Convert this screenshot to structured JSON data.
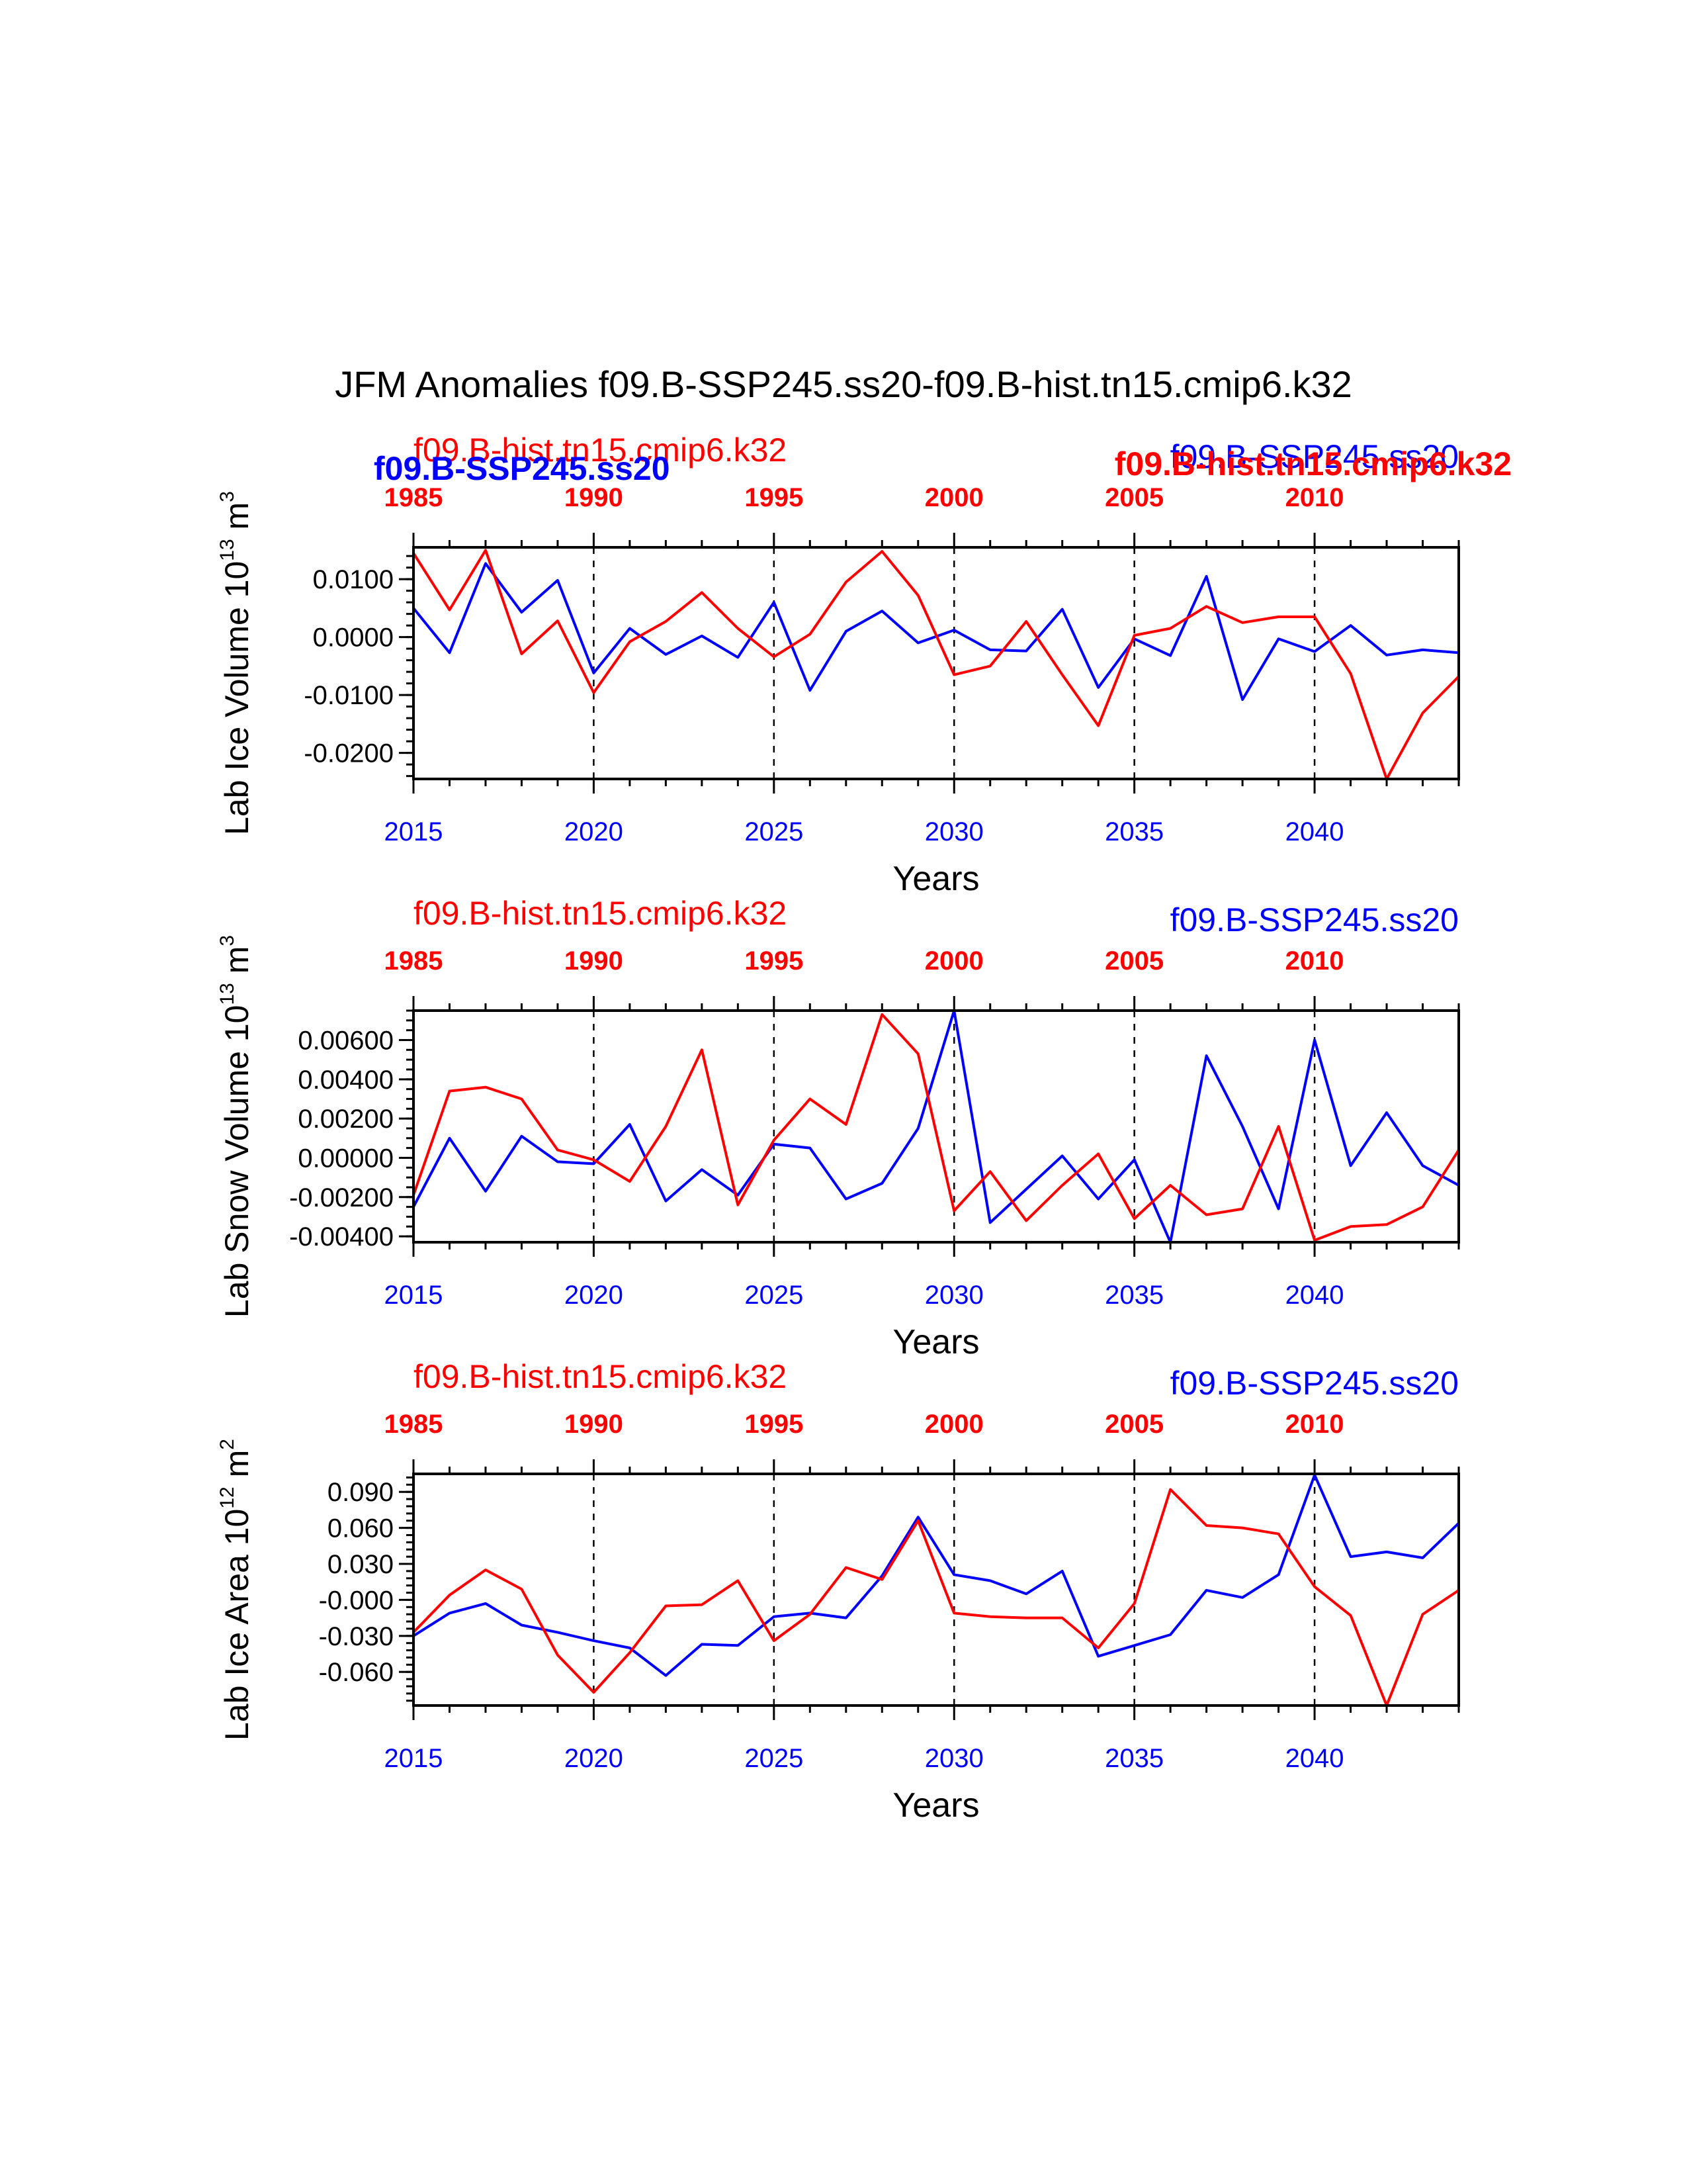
{
  "title": "JFM Anomalies f09.B-SSP245.ss20-f09.B-hist.tn15.cmip6.k32",
  "colors": {
    "ssp": "#0000ff",
    "hist": "#ff0000",
    "axis": "#000000"
  },
  "top_tick_labels": [
    "1985",
    "1990",
    "1995",
    "2000",
    "2005",
    "2010"
  ],
  "panel1_overlap_labels": {
    "ssp_left_bold": "f09.B-SSP245.ss20",
    "hist_right_bold": "f09.B-hist.tn15.cmip6.k32"
  },
  "chart_data": [
    {
      "type": "line",
      "ylabel": "Lab Ice Volume 10",
      "yunit_exp": "13",
      "yunit": "m",
      "yunit_pow": "3",
      "xlabel": "Years",
      "legend_left": "f09.B-hist.tn15.cmip6.k32",
      "legend_right": "f09.B-SSP245.ss20",
      "xlim": [
        2015,
        2044
      ],
      "ylim": [
        -0.0245,
        0.0155
      ],
      "ytick_values": [
        0.01,
        0.0,
        -0.01,
        -0.02
      ],
      "ytick_labels": [
        "0.0100",
        "0.0000",
        "-0.0100",
        "-0.0200"
      ],
      "yminor_step": 0.002,
      "xticks_bottom": [
        2015,
        2020,
        2025,
        2030,
        2035,
        2040
      ],
      "xtick_labels_bottom": [
        "2015",
        "2020",
        "2025",
        "2030",
        "2035",
        "2040"
      ],
      "series": [
        {
          "name": "f09.B-SSP245.ss20",
          "color": "#0000ff",
          "x": [
            2015,
            2016,
            2017,
            2018,
            2019,
            2020,
            2021,
            2022,
            2023,
            2024,
            2025,
            2026,
            2027,
            2028,
            2029,
            2030,
            2031,
            2032,
            2033,
            2034,
            2035,
            2036,
            2037,
            2038,
            2039,
            2040,
            2041,
            2042,
            2043,
            2044
          ],
          "values": [
            0.005,
            -0.0027,
            0.0127,
            0.0043,
            0.0098,
            -0.0062,
            0.0015,
            -0.003,
            0.0002,
            -0.0035,
            0.006,
            -0.0092,
            0.001,
            0.0045,
            -0.001,
            0.0012,
            -0.0022,
            -0.0024,
            0.0048,
            -0.0087,
            -0.0003,
            -0.0032,
            0.0105,
            -0.0108,
            -0.0003,
            -0.0025,
            0.002,
            -0.0031,
            -0.0022,
            -0.0027
          ]
        },
        {
          "name": "f09.B-hist.tn15.cmip6.k32",
          "color": "#ff0000",
          "x": [
            2015,
            2016,
            2017,
            2018,
            2019,
            2020,
            2021,
            2022,
            2023,
            2024,
            2025,
            2026,
            2027,
            2028,
            2029,
            2030,
            2031,
            2032,
            2033,
            2034,
            2035,
            2036,
            2037,
            2038,
            2039,
            2040,
            2041,
            2042,
            2043,
            2044
          ],
          "values": [
            0.0145,
            0.0047,
            0.015,
            -0.0029,
            0.0028,
            -0.0096,
            -0.0008,
            0.0027,
            0.0077,
            0.0015,
            -0.0034,
            0.0005,
            0.0095,
            0.0148,
            0.0072,
            -0.0065,
            -0.005,
            0.0027,
            -0.0065,
            -0.0153,
            0.0003,
            0.0015,
            0.0053,
            0.0025,
            0.0035,
            0.0035,
            -0.0063,
            -0.0245,
            -0.0131,
            -0.0068
          ]
        }
      ]
    },
    {
      "type": "line",
      "ylabel": "Lab Snow Volume 10",
      "yunit_exp": "13",
      "yunit": "m",
      "yunit_pow": "3",
      "xlabel": "Years",
      "legend_left": "f09.B-hist.tn15.cmip6.k32",
      "legend_right": "f09.B-SSP245.ss20",
      "xlim": [
        2015,
        2044
      ],
      "ylim": [
        -0.0043,
        0.0075
      ],
      "ytick_values": [
        0.006,
        0.004,
        0.002,
        0.0,
        -0.002,
        -0.004
      ],
      "ytick_labels": [
        "0.00600",
        "0.00400",
        "0.00200",
        "0.00000",
        "-0.00200",
        "-0.00400"
      ],
      "yminor_step": 0.0005,
      "xticks_bottom": [
        2015,
        2020,
        2025,
        2030,
        2035,
        2040
      ],
      "xtick_labels_bottom": [
        "2015",
        "2020",
        "2025",
        "2030",
        "2035",
        "2040"
      ],
      "series": [
        {
          "name": "f09.B-SSP245.ss20",
          "color": "#0000ff",
          "x": [
            2015,
            2016,
            2017,
            2018,
            2019,
            2020,
            2021,
            2022,
            2023,
            2024,
            2025,
            2026,
            2027,
            2028,
            2029,
            2030,
            2031,
            2032,
            2033,
            2034,
            2035,
            2036,
            2037,
            2038,
            2039,
            2040,
            2041,
            2042,
            2043,
            2044
          ],
          "values": [
            -0.0025,
            0.001,
            -0.0017,
            0.0011,
            -0.0002,
            -0.0003,
            0.0017,
            -0.0022,
            -0.0006,
            -0.0019,
            0.0007,
            0.0005,
            -0.0021,
            -0.0013,
            0.0015,
            0.0075,
            -0.0033,
            -0.0016,
            0.0001,
            -0.0021,
            -0.0001,
            -0.0043,
            0.0052,
            0.0016,
            -0.0026,
            0.006,
            -0.0004,
            0.0023,
            -0.0004,
            -0.0014
          ]
        },
        {
          "name": "f09.B-hist.tn15.cmip6.k32",
          "color": "#ff0000",
          "x": [
            2015,
            2016,
            2017,
            2018,
            2019,
            2020,
            2021,
            2022,
            2023,
            2024,
            2025,
            2026,
            2027,
            2028,
            2029,
            2030,
            2031,
            2032,
            2033,
            2034,
            2035,
            2036,
            2037,
            2038,
            2039,
            2040,
            2041,
            2042,
            2043,
            2044
          ],
          "values": [
            -0.0019,
            0.0034,
            0.0036,
            0.003,
            0.0004,
            -0.0001,
            -0.0012,
            0.0016,
            0.0055,
            -0.0024,
            0.0009,
            0.003,
            0.0017,
            0.0073,
            0.0053,
            -0.0027,
            -0.0007,
            -0.0032,
            -0.0014,
            0.0002,
            -0.0031,
            -0.0014,
            -0.0029,
            -0.0026,
            0.0016,
            -0.0042,
            -0.0035,
            -0.0034,
            -0.0025,
            0.0004
          ]
        }
      ]
    },
    {
      "type": "line",
      "ylabel": "Lab Ice Area 10",
      "yunit_exp": "12",
      "yunit": "m",
      "yunit_pow": "2",
      "xlabel": "Years",
      "legend_left": "f09.B-hist.tn15.cmip6.k32",
      "legend_right": "f09.B-SSP245.ss20",
      "xlim": [
        2015,
        2044
      ],
      "ylim": [
        -0.088,
        0.105
      ],
      "ytick_values": [
        0.09,
        0.06,
        0.03,
        0.0,
        -0.03,
        -0.06
      ],
      "ytick_labels": [
        "0.090",
        "0.060",
        "0.030",
        "-0.000",
        "-0.030",
        "-0.060"
      ],
      "yminor_step": 0.006,
      "xticks_bottom": [
        2015,
        2020,
        2025,
        2030,
        2035,
        2040
      ],
      "xtick_labels_bottom": [
        "2015",
        "2020",
        "2025",
        "2030",
        "2035",
        "2040"
      ],
      "series": [
        {
          "name": "f09.B-SSP245.ss20",
          "color": "#0000ff",
          "x": [
            2015,
            2016,
            2017,
            2018,
            2019,
            2020,
            2021,
            2022,
            2023,
            2024,
            2025,
            2026,
            2027,
            2028,
            2029,
            2030,
            2031,
            2032,
            2033,
            2034,
            2035,
            2036,
            2037,
            2038,
            2039,
            2040,
            2041,
            2042,
            2043,
            2044
          ],
          "values": [
            -0.03,
            -0.011,
            -0.003,
            -0.021,
            -0.027,
            -0.034,
            -0.04,
            -0.063,
            -0.037,
            -0.038,
            -0.014,
            -0.011,
            -0.015,
            0.02,
            0.069,
            0.021,
            0.016,
            0.005,
            0.024,
            -0.047,
            -0.038,
            -0.029,
            0.008,
            0.002,
            0.021,
            0.104,
            0.036,
            0.04,
            0.035,
            0.064
          ]
        },
        {
          "name": "f09.B-hist.tn15.cmip6.k32",
          "color": "#ff0000",
          "x": [
            2015,
            2016,
            2017,
            2018,
            2019,
            2020,
            2021,
            2022,
            2023,
            2024,
            2025,
            2026,
            2027,
            2028,
            2029,
            2030,
            2031,
            2032,
            2033,
            2034,
            2035,
            2036,
            2037,
            2038,
            2039,
            2040,
            2041,
            2042,
            2043,
            2044
          ],
          "values": [
            -0.027,
            0.004,
            0.025,
            0.009,
            -0.046,
            -0.077,
            -0.044,
            -0.005,
            -0.004,
            0.016,
            -0.034,
            -0.012,
            0.027,
            0.017,
            0.066,
            -0.011,
            -0.014,
            -0.015,
            -0.015,
            -0.04,
            -0.003,
            0.092,
            0.062,
            0.06,
            0.055,
            0.011,
            -0.013,
            -0.088,
            -0.012,
            0.008
          ]
        }
      ]
    }
  ]
}
